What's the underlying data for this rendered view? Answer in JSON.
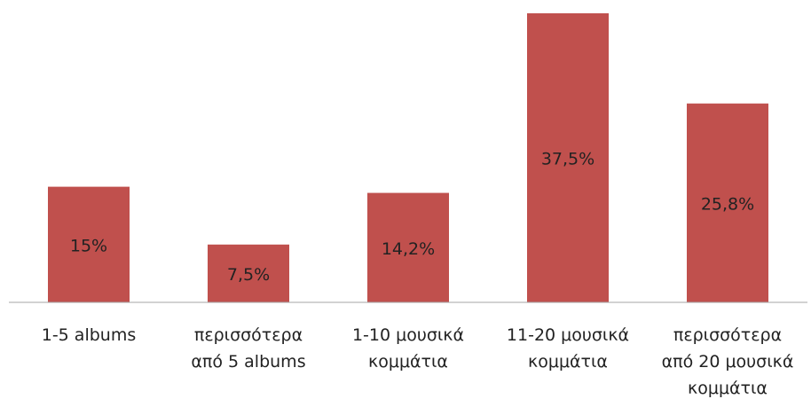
{
  "chart_data": {
    "type": "bar",
    "categories": [
      "1-5 albums",
      "περισσότερα\nαπό 5 albums",
      "1-10 μουσικά\nκομμάτια",
      "11-20 μουσικά\nκομμάτια",
      "περισσότερα\nαπό 20 μουσικά\nκομμάτια"
    ],
    "values": [
      15,
      7.5,
      14.2,
      37.5,
      25.8
    ],
    "value_labels": [
      "15%",
      "7,5%",
      "14,2%",
      "37,5%",
      "25,8%"
    ],
    "color": "#c0504d",
    "ylim": [
      0,
      37.5
    ]
  }
}
